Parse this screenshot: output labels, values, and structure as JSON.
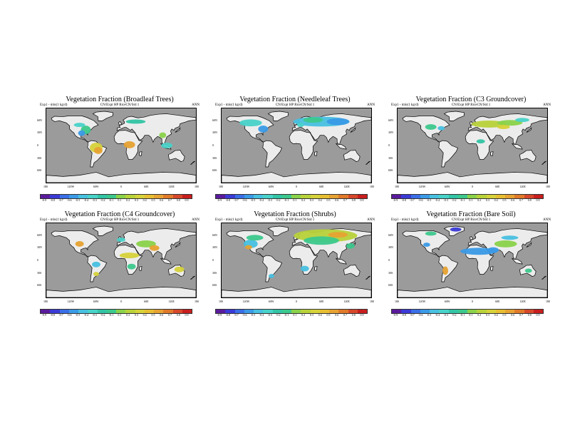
{
  "colors": {
    "ocean": "#9b9b9b",
    "land": "#ececec",
    "coast": "#000000",
    "colorbar": [
      "#5a1a9c",
      "#3a3ad6",
      "#3a6ee6",
      "#3a9ae6",
      "#48c0e0",
      "#48d2c8",
      "#32c4a4",
      "#3cc88c",
      "#8ad24a",
      "#b8d23a",
      "#d6d23a",
      "#e6be32",
      "#e6a232",
      "#e07a2a",
      "#d6482a",
      "#c81e1e"
    ]
  },
  "colorbar_ticks": [
    "-0.9",
    "-0.8",
    "-0.7",
    "-0.6",
    "-0.5",
    "-0.4",
    "-0.3",
    "-0.2",
    "-0.1",
    "0.1",
    "0.2",
    "0.3",
    "0.4",
    "0.5",
    "0.6",
    "0.7",
    "0.8",
    "0.9"
  ],
  "lat_ticks": [
    "60N",
    "30N",
    "0",
    "30S",
    "60S"
  ],
  "lon_ticks": [
    "180",
    "120W",
    "60W",
    "0",
    "60E",
    "120E",
    "180"
  ],
  "panels": [
    {
      "title": "Vegetation Fraction (Broadleaf Trees)",
      "sub_left": "Exp1 - mlo(1 kg/d)",
      "sub_mid": "CN/Expt HP    RiceCN/Std 1",
      "sub_right": "ANN",
      "blobs": [
        {
          "lon": -85,
          "lat": 38,
          "rx": 7,
          "ry": 6,
          "color": "#3cc88c"
        },
        {
          "lon": -95,
          "lat": 30,
          "rx": 5,
          "ry": 4,
          "color": "#3a9ae6"
        },
        {
          "lon": -60,
          "lat": -5,
          "rx": 9,
          "ry": 7,
          "color": "#d6d23a"
        },
        {
          "lon": -55,
          "lat": -12,
          "rx": 6,
          "ry": 5,
          "color": "#e6a232"
        },
        {
          "lon": 20,
          "lat": 2,
          "rx": 8,
          "ry": 5,
          "color": "#e6a232"
        },
        {
          "lon": 35,
          "lat": 58,
          "rx": 14,
          "ry": 3,
          "color": "#32c4a4"
        },
        {
          "lon": 110,
          "lat": 0,
          "rx": 8,
          "ry": 4,
          "color": "#48d2c8"
        },
        {
          "lon": -100,
          "lat": 50,
          "rx": 8,
          "ry": 3,
          "color": "#48d2c8"
        },
        {
          "lon": 100,
          "lat": 25,
          "rx": 5,
          "ry": 4,
          "color": "#8ad24a"
        }
      ]
    },
    {
      "title": "Vegetation Fraction (Needleleaf Trees)",
      "sub_left": "Exp1 - mlo(1 kg/d)",
      "sub_mid": "CN/Expt HP    RiceCN/Std 1",
      "sub_right": "ANN",
      "blobs": [
        {
          "lon": -110,
          "lat": 55,
          "rx": 16,
          "ry": 5,
          "color": "#48d2c8"
        },
        {
          "lon": -80,
          "lat": 40,
          "rx": 7,
          "ry": 5,
          "color": "#3a9ae6"
        },
        {
          "lon": 60,
          "lat": 58,
          "rx": 40,
          "ry": 7,
          "color": "#48c0e0"
        },
        {
          "lon": 40,
          "lat": 62,
          "rx": 14,
          "ry": 4,
          "color": "#3cc88c"
        },
        {
          "lon": 100,
          "lat": 58,
          "rx": 16,
          "ry": 5,
          "color": "#3a9ae6"
        },
        {
          "lon": 10,
          "lat": 50,
          "rx": 5,
          "ry": 3,
          "color": "#48d2c8"
        }
      ]
    },
    {
      "title": "Vegetation Fraction (C3 Groundcover)",
      "sub_left": "Exp1 - mlo(1 kg/d)",
      "sub_mid": "CN/Expt HP    RiceCN/Std 1",
      "sub_right": "ANN",
      "blobs": [
        {
          "lon": 40,
          "lat": 52,
          "rx": 25,
          "ry": 5,
          "color": "#b8d23a"
        },
        {
          "lon": 90,
          "lat": 55,
          "rx": 18,
          "ry": 4,
          "color": "#8ad24a"
        },
        {
          "lon": -100,
          "lat": 45,
          "rx": 8,
          "ry": 4,
          "color": "#3cc88c"
        },
        {
          "lon": -75,
          "lat": 42,
          "rx": 5,
          "ry": 3,
          "color": "#48c0e0"
        },
        {
          "lon": 75,
          "lat": 45,
          "rx": 9,
          "ry": 3,
          "color": "#d6d23a"
        },
        {
          "lon": 120,
          "lat": 62,
          "rx": 10,
          "ry": 3,
          "color": "#48d2c8"
        },
        {
          "lon": 20,
          "lat": 10,
          "rx": 6,
          "ry": 3,
          "color": "#32c4a4"
        }
      ]
    },
    {
      "title": "Vegetation Fraction (C4 Groundcover)",
      "sub_left": "Exp1 - mlo(1 kg/d)",
      "sub_mid": "CN/Expt HP    RiceCN/Std 1",
      "sub_right": "ANN",
      "blobs": [
        {
          "lon": -100,
          "lat": 40,
          "rx": 6,
          "ry": 4,
          "color": "#e6a232"
        },
        {
          "lon": 20,
          "lat": 12,
          "rx": 14,
          "ry": 4,
          "color": "#d6d23a"
        },
        {
          "lon": 60,
          "lat": 40,
          "rx": 14,
          "ry": 5,
          "color": "#8ad24a"
        },
        {
          "lon": 80,
          "lat": 30,
          "rx": 7,
          "ry": 4,
          "color": "#e6a232"
        },
        {
          "lon": -60,
          "lat": -10,
          "rx": 6,
          "ry": 4,
          "color": "#48c0e0"
        },
        {
          "lon": 140,
          "lat": -22,
          "rx": 7,
          "ry": 4,
          "color": "#d6d23a"
        },
        {
          "lon": 25,
          "lat": -15,
          "rx": 6,
          "ry": 4,
          "color": "#3cc88c"
        },
        {
          "lon": -60,
          "lat": -33,
          "rx": 4,
          "ry": 3,
          "color": "#d6d23a"
        },
        {
          "lon": 0,
          "lat": 50,
          "rx": 6,
          "ry": 3,
          "color": "#48d2c8"
        }
      ]
    },
    {
      "title": "Vegetation Fraction (Shrubs)",
      "sub_left": "Exp1 - mlo(1 kg/d)",
      "sub_mid": "CN/Expt HP    RiceCN/Std 1",
      "sub_right": "ANN",
      "blobs": [
        {
          "lon": 70,
          "lat": 60,
          "rx": 45,
          "ry": 9,
          "color": "#b8d23a"
        },
        {
          "lon": 60,
          "lat": 48,
          "rx": 25,
          "ry": 6,
          "color": "#3cc88c"
        },
        {
          "lon": 100,
          "lat": 62,
          "rx": 14,
          "ry": 4,
          "color": "#e6a232"
        },
        {
          "lon": -110,
          "lat": 40,
          "rx": 10,
          "ry": 6,
          "color": "#48c0e0"
        },
        {
          "lon": -100,
          "lat": 55,
          "rx": 12,
          "ry": 4,
          "color": "#3cc88c"
        },
        {
          "lon": -115,
          "lat": 32,
          "rx": 5,
          "ry": 3,
          "color": "#e6a232"
        },
        {
          "lon": 20,
          "lat": -20,
          "rx": 6,
          "ry": 4,
          "color": "#48c0e0"
        },
        {
          "lon": -60,
          "lat": -38,
          "rx": 4,
          "ry": 3,
          "color": "#48c0e0"
        },
        {
          "lon": 130,
          "lat": 35,
          "rx": 6,
          "ry": 4,
          "color": "#3cc88c"
        }
      ]
    },
    {
      "title": "Vegetation Fraction (Bare Soil)",
      "sub_left": "Exp1 - mlo(1 kg/d)",
      "sub_mid": "CN/Expt HP    RiceCN/Std 1",
      "sub_right": "ANN",
      "blobs": [
        {
          "lon": -40,
          "lat": 75,
          "rx": 8,
          "ry": 3,
          "color": "#3a3ad6"
        },
        {
          "lon": 15,
          "lat": 22,
          "rx": 26,
          "ry": 5,
          "color": "#3a9ae6"
        },
        {
          "lon": 50,
          "lat": 25,
          "rx": 8,
          "ry": 4,
          "color": "#3a9ae6"
        },
        {
          "lon": 80,
          "lat": 40,
          "rx": 16,
          "ry": 5,
          "color": "#8ad24a"
        },
        {
          "lon": 90,
          "lat": 55,
          "rx": 12,
          "ry": 3,
          "color": "#48c0e0"
        },
        {
          "lon": -110,
          "lat": 38,
          "rx": 5,
          "ry": 3,
          "color": "#3a9ae6"
        },
        {
          "lon": -65,
          "lat": -25,
          "rx": 4,
          "ry": 6,
          "color": "#e6a232"
        },
        {
          "lon": 135,
          "lat": -25,
          "rx": 5,
          "ry": 3,
          "color": "#3cc88c"
        },
        {
          "lon": -100,
          "lat": 65,
          "rx": 8,
          "ry": 3,
          "color": "#3cc88c"
        }
      ]
    }
  ]
}
